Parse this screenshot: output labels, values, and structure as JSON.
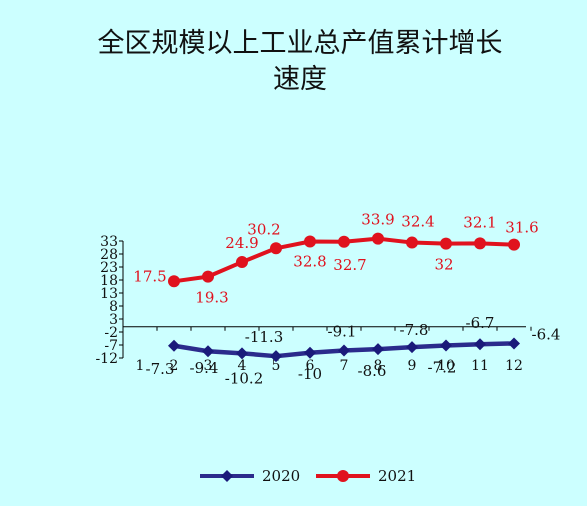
{
  "chart_data": {
    "type": "line",
    "title_lines": [
      "全区规模以上工业总产值累计增长",
      "速度"
    ],
    "x": [
      "1",
      "2",
      "3",
      "4",
      "5",
      "6",
      "7",
      "8",
      "9",
      "10",
      "11",
      "12"
    ],
    "y_ticks": [
      "33",
      "28",
      "23",
      "18",
      "13",
      "8",
      "3",
      "-2",
      "-7",
      "-12"
    ],
    "ylim": [
      -12,
      33
    ],
    "grid": false,
    "legend_position": "bottom",
    "series": [
      {
        "name": "2020",
        "color": "#2b2b8c",
        "marker": "diamond",
        "x": [
          "2",
          "3",
          "4",
          "5",
          "6",
          "7",
          "8",
          "9",
          "10",
          "11",
          "12"
        ],
        "values": [
          -7.3,
          -9.4,
          -10.2,
          -11.3,
          -10,
          -9.1,
          -8.6,
          -7.8,
          -7.2,
          -6.7,
          -6.4
        ],
        "labels": [
          "-7.3",
          "-9.4",
          "-10.2",
          "-11.3",
          "-10",
          "-9.1",
          "-8.6",
          "-7.8",
          "-7.2",
          "-6.7",
          "-6.4"
        ]
      },
      {
        "name": "2021",
        "color": "#e0121e",
        "marker": "circle",
        "x": [
          "2",
          "3",
          "4",
          "5",
          "6",
          "7",
          "8",
          "9",
          "10",
          "11",
          "12"
        ],
        "values": [
          17.5,
          19.3,
          24.9,
          30.2,
          32.8,
          32.7,
          33.9,
          32.4,
          32,
          32.1,
          31.6
        ],
        "labels": [
          "17.5",
          "19.3",
          "24.9",
          "30.2",
          "32.8",
          "32.7",
          "33.9",
          "32.4",
          "32",
          "32.1",
          "31.6"
        ]
      }
    ]
  }
}
